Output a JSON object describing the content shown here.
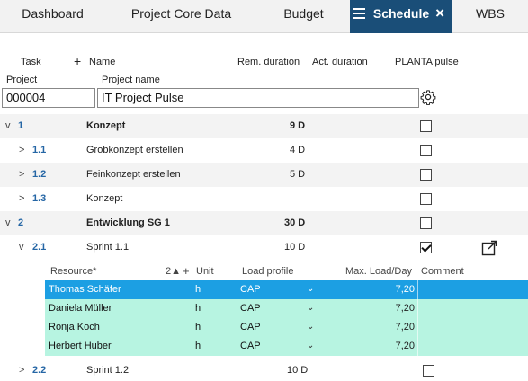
{
  "tabs": [
    {
      "label": "Dashboard"
    },
    {
      "label": "Project Core Data"
    },
    {
      "label": "Budget"
    },
    {
      "label": "Schedule"
    },
    {
      "label": "WBS"
    }
  ],
  "tab_close_symbol": "×",
  "header": {
    "task": "Task",
    "plus": "+",
    "name": "Name",
    "rem_duration": "Rem. duration",
    "act_duration": "Act. duration",
    "planta_pulse": "PLANTA pulse"
  },
  "project": {
    "project_label": "Project",
    "project_name_label": "Project name",
    "project_id": "000004",
    "project_name": "IT Project Pulse"
  },
  "rows": [
    {
      "chev": "v",
      "num": "1",
      "name": "Konzept",
      "dur": "9 D",
      "checked": false
    },
    {
      "chev": ">",
      "num": "1.1",
      "name": "Grobkonzept erstellen",
      "dur": "4 D",
      "checked": false
    },
    {
      "chev": ">",
      "num": "1.2",
      "name": "Feinkonzept erstellen",
      "dur": "5 D",
      "checked": false
    },
    {
      "chev": ">",
      "num": "1.3",
      "name": "Konzept",
      "dur": "",
      "checked": false
    },
    {
      "chev": "v",
      "num": "2",
      "name": "Entwicklung SG 1",
      "dur": "30 D",
      "checked": false
    },
    {
      "chev": "v",
      "num": "2.1",
      "name": "Sprint 1.1",
      "dur": "10 D",
      "checked": true
    },
    {
      "chev": ">",
      "num": "2.2",
      "name": "Sprint 1.2",
      "dur": "10 D",
      "checked": false
    }
  ],
  "resource_header": {
    "resource": "Resource*",
    "sort_indicator": "2▲",
    "plus": "+",
    "unit": "Unit",
    "load_profile": "Load profile",
    "max_load": "Max. Load/Day",
    "comment": "Comment"
  },
  "resources": [
    {
      "name": "Thomas Schäfer",
      "unit": "h",
      "profile": "CAP",
      "chev": "⌄",
      "max": "7,20",
      "selected": true
    },
    {
      "name": "Daniela Müller",
      "unit": "h",
      "profile": "CAP",
      "chev": "⌄",
      "max": "7,20",
      "selected": false
    },
    {
      "name": "Ronja Koch",
      "unit": "h",
      "profile": "CAP",
      "chev": "⌄",
      "max": "7,20",
      "selected": false
    },
    {
      "name": "Herbert Huber",
      "unit": "h",
      "profile": "CAP",
      "chev": "⌄",
      "max": "7,20",
      "selected": false
    }
  ],
  "colors": {
    "active_tab": "#1a4e78",
    "selected_row": "#1c9fe3",
    "resource_row": "#b7f4e1",
    "wbs_number": "#2566a5"
  }
}
